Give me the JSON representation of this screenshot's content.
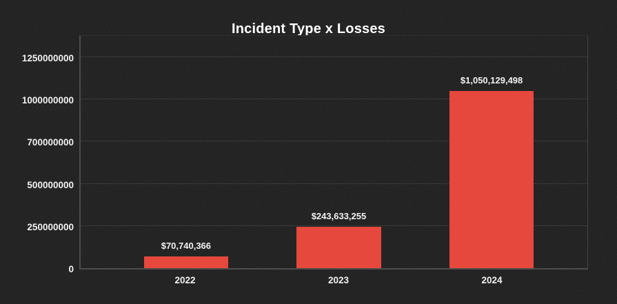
{
  "page": {
    "background_color": "#1a1a1a",
    "text_color": "#f2f2f2"
  },
  "chart_data": {
    "type": "bar",
    "title": "Incident Type x Losses",
    "xlabel": "",
    "ylabel": "",
    "categories": [
      "2022",
      "2023",
      "2024"
    ],
    "values": [
      70740366,
      243633255,
      1050129498
    ],
    "value_labels": [
      "$70,740,366",
      "$243,633,255",
      "$1,050,129,498"
    ],
    "yticks": [
      {
        "value": 0,
        "label": "0"
      },
      {
        "value": 250000000,
        "label": "250000000"
      },
      {
        "value": 500000000,
        "label": "500000000"
      },
      {
        "value": 700000000,
        "label": "700000000"
      },
      {
        "value": 1000000000,
        "label": "1000000000"
      },
      {
        "value": 1250000000,
        "label": "1250000000"
      }
    ],
    "ylim": [
      0,
      1250000000
    ],
    "grid": true,
    "legend_position": "none",
    "colors": {
      "bar": "#e6483d",
      "grid": "#3a3a3a",
      "axis": "#4d4d4d",
      "text": "#f2f2f2",
      "title": "#ffffff",
      "background": "#1a1a1a"
    }
  }
}
